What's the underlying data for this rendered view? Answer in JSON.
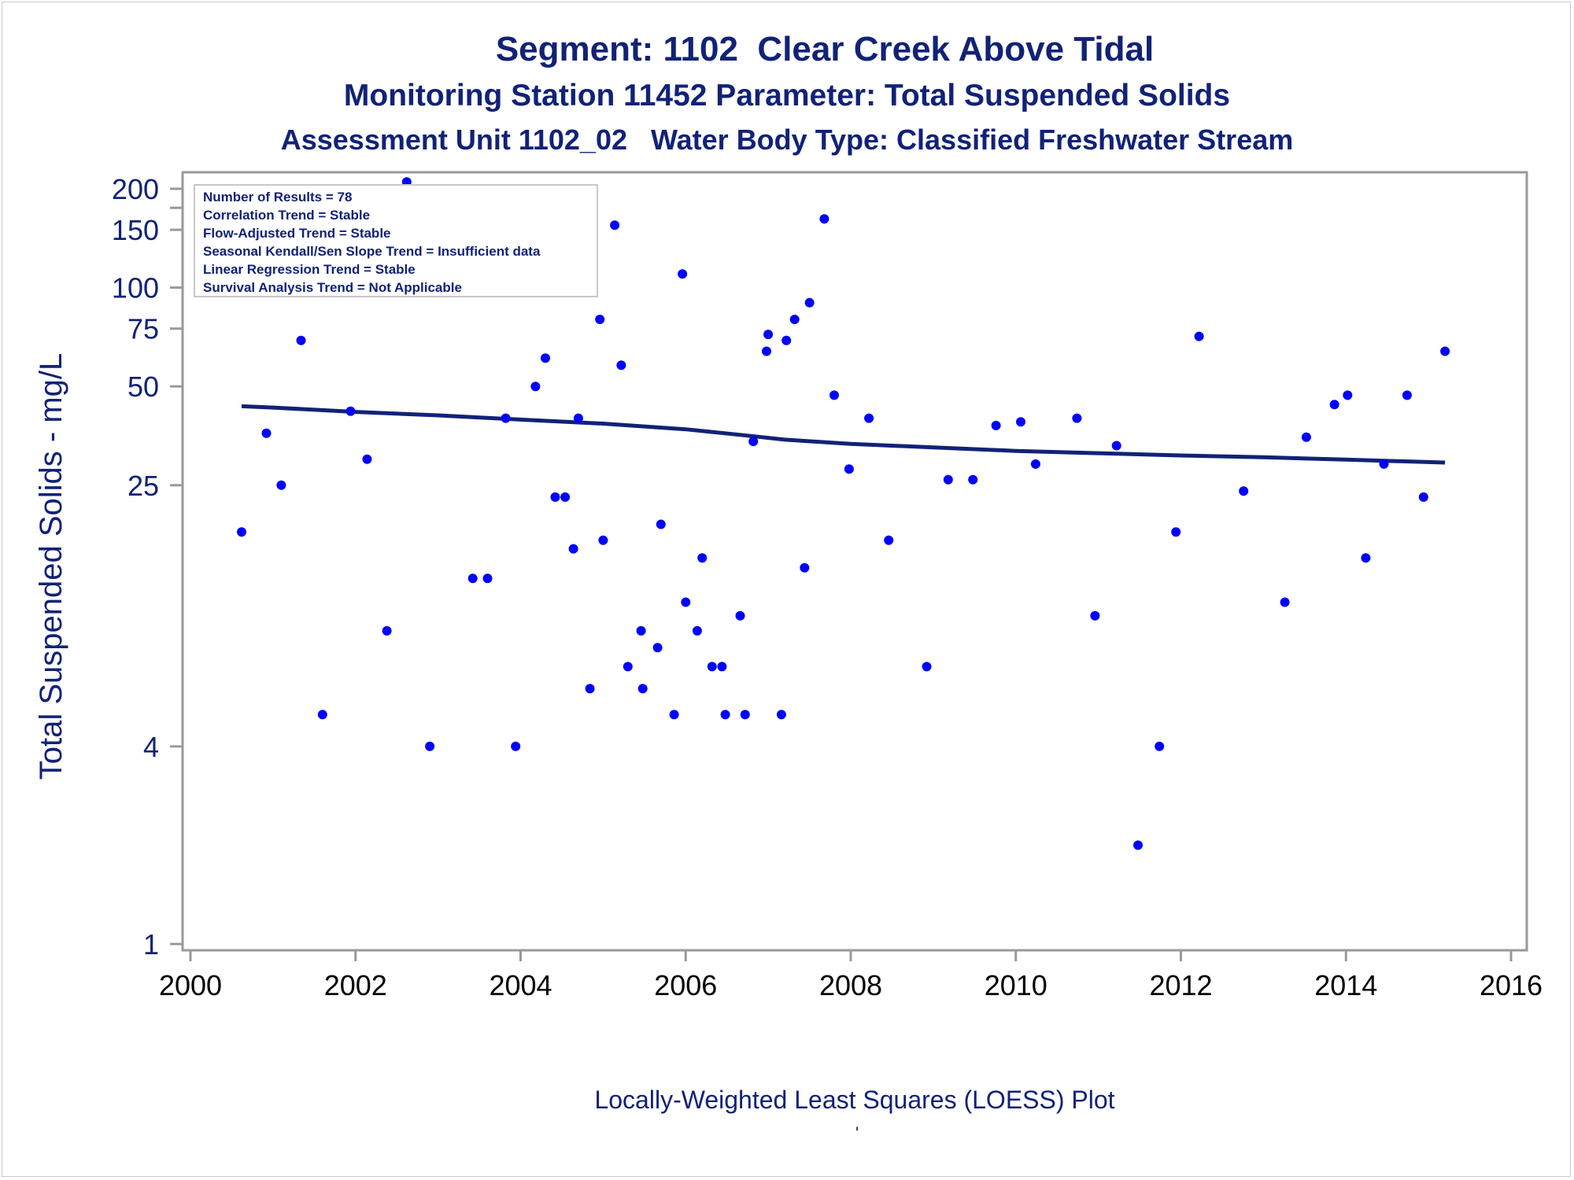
{
  "chart_data": {
    "type": "scatter",
    "title": "Segment: 1102  Clear Creek Above Tidal",
    "subtitle1": "Monitoring Station 11452 Parameter: Total Suspended Solids",
    "subtitle2": "Assessment Unit 1102_02   Water Body Type: Classified Freshwater Stream",
    "ylabel": "Total Suspended Solids - mg/L",
    "xlabel": "",
    "footnote": "Locally-Weighted Least Squares (LOESS) Plot",
    "footnote_mark": "'",
    "y_scale": "log",
    "xlim": [
      2000,
      2016
    ],
    "ylim": [
      1,
      220
    ],
    "x_ticks": [
      2000,
      2002,
      2004,
      2006,
      2008,
      2010,
      2012,
      2014,
      2016
    ],
    "y_ticks": [
      1,
      4,
      25,
      50,
      75,
      100,
      150,
      200
    ],
    "stats_box": {
      "placement": "top-left",
      "lines": [
        "Number of Results = 78",
        "Correlation Trend = Stable",
        "Flow-Adjusted Trend = Stable",
        "Seasonal Kendall/Sen Slope Trend = Insufficient data",
        "Linear Regression Trend = Stable",
        "Survival Analysis Trend = Not Applicable"
      ]
    },
    "series": [
      {
        "marker": "dot",
        "color": "#0000ff",
        "points": [
          [
            2000.62,
            18
          ],
          [
            2000.92,
            36
          ],
          [
            2001.1,
            25
          ],
          [
            2001.34,
            69
          ],
          [
            2001.6,
            5
          ],
          [
            2001.94,
            42
          ],
          [
            2002.14,
            30
          ],
          [
            2002.38,
            9
          ],
          [
            2002.62,
            210
          ],
          [
            2002.9,
            4
          ],
          [
            2003.14,
            120
          ],
          [
            2003.42,
            13
          ],
          [
            2003.6,
            13
          ],
          [
            2003.82,
            40
          ],
          [
            2003.94,
            4
          ],
          [
            2004.14,
            105
          ],
          [
            2004.18,
            50
          ],
          [
            2004.3,
            61
          ],
          [
            2004.42,
            23
          ],
          [
            2004.54,
            23
          ],
          [
            2004.64,
            16
          ],
          [
            2004.7,
            40
          ],
          [
            2004.84,
            6
          ],
          [
            2004.96,
            80
          ],
          [
            2005.0,
            17
          ],
          [
            2005.14,
            155
          ],
          [
            2005.22,
            58
          ],
          [
            2005.3,
            7
          ],
          [
            2005.46,
            9
          ],
          [
            2005.48,
            6
          ],
          [
            2005.66,
            8
          ],
          [
            2005.7,
            19
          ],
          [
            2005.86,
            5
          ],
          [
            2005.96,
            110
          ],
          [
            2006.0,
            11
          ],
          [
            2006.14,
            9
          ],
          [
            2006.2,
            15
          ],
          [
            2006.32,
            7
          ],
          [
            2006.44,
            7
          ],
          [
            2006.48,
            5
          ],
          [
            2006.66,
            10
          ],
          [
            2006.72,
            5
          ],
          [
            2006.82,
            34
          ],
          [
            2006.98,
            64
          ],
          [
            2007.0,
            72
          ],
          [
            2007.16,
            5
          ],
          [
            2007.22,
            69
          ],
          [
            2007.32,
            80
          ],
          [
            2007.44,
            14
          ],
          [
            2007.5,
            90
          ],
          [
            2007.68,
            162
          ],
          [
            2007.8,
            47
          ],
          [
            2007.98,
            28
          ],
          [
            2008.22,
            40
          ],
          [
            2008.46,
            17
          ],
          [
            2008.92,
            7
          ],
          [
            2009.18,
            26
          ],
          [
            2009.48,
            26
          ],
          [
            2009.76,
            38
          ],
          [
            2010.06,
            39
          ],
          [
            2010.24,
            29
          ],
          [
            2010.74,
            40
          ],
          [
            2010.96,
            10
          ],
          [
            2011.22,
            33
          ],
          [
            2011.48,
            2
          ],
          [
            2011.74,
            4
          ],
          [
            2011.94,
            18
          ],
          [
            2012.22,
            71
          ],
          [
            2012.76,
            24
          ],
          [
            2013.26,
            11
          ],
          [
            2013.52,
            35
          ],
          [
            2013.86,
            44
          ],
          [
            2014.02,
            47
          ],
          [
            2014.24,
            15
          ],
          [
            2014.46,
            29
          ],
          [
            2014.74,
            47
          ],
          [
            2014.94,
            23
          ],
          [
            2015.2,
            64
          ]
        ]
      },
      {
        "name": "",
        "line": "loess",
        "color": "#112277",
        "points": [
          [
            2000.62,
            43.5
          ],
          [
            2001.0,
            43.1
          ],
          [
            2002.0,
            41.8
          ],
          [
            2003.0,
            40.8
          ],
          [
            2004.0,
            39.6
          ],
          [
            2005.0,
            38.5
          ],
          [
            2006.0,
            37.0
          ],
          [
            2006.8,
            35.3
          ],
          [
            2007.2,
            34.4
          ],
          [
            2008.0,
            33.4
          ],
          [
            2009.0,
            32.6
          ],
          [
            2010.0,
            31.8
          ],
          [
            2011.0,
            31.3
          ],
          [
            2012.0,
            30.8
          ],
          [
            2013.0,
            30.4
          ],
          [
            2014.0,
            29.9
          ],
          [
            2015.2,
            29.3
          ]
        ]
      }
    ],
    "grid": false,
    "colors": {
      "text": "#112277",
      "axis": "#999999",
      "point": "#0000ff",
      "line": "#112277"
    }
  }
}
